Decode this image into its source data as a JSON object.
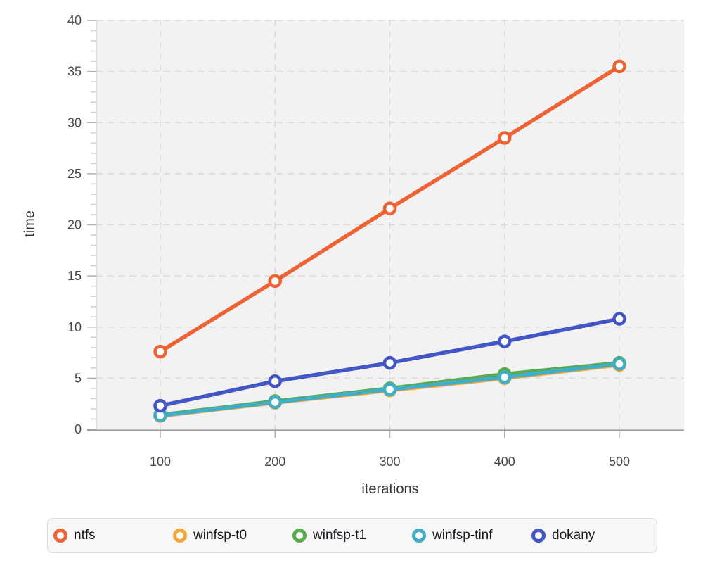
{
  "chart_data": {
    "type": "line",
    "title": "",
    "xlabel": "iterations",
    "ylabel": "time",
    "x": [
      100,
      200,
      300,
      400,
      500
    ],
    "xticks": [
      "100",
      "200",
      "300",
      "400",
      "500"
    ],
    "yticks": [
      "0",
      "5",
      "10",
      "15",
      "20",
      "25",
      "30",
      "35",
      "40"
    ],
    "ylim": [
      0,
      40
    ],
    "ytick_step": 5,
    "yminor_step": 1,
    "grid": "dashed",
    "plot_background": "#f2f2f2",
    "legend_position": "bottom",
    "marker": "open-circle",
    "series": [
      {
        "name": "ntfs",
        "color": "#ee6234",
        "values": [
          7.6,
          14.5,
          21.6,
          28.5,
          35.5
        ]
      },
      {
        "name": "winfsp-t0",
        "color": "#f2a63c",
        "values": [
          1.3,
          2.6,
          3.8,
          5.0,
          6.3
        ]
      },
      {
        "name": "winfsp-t1",
        "color": "#57ab4e",
        "values": [
          1.4,
          2.75,
          4.0,
          5.4,
          6.5
        ]
      },
      {
        "name": "winfsp-tinf",
        "color": "#42aec5",
        "values": [
          1.35,
          2.65,
          3.9,
          5.1,
          6.4
        ]
      },
      {
        "name": "dokany",
        "color": "#4356c6",
        "values": [
          2.3,
          4.7,
          6.5,
          8.6,
          10.8
        ]
      }
    ]
  }
}
